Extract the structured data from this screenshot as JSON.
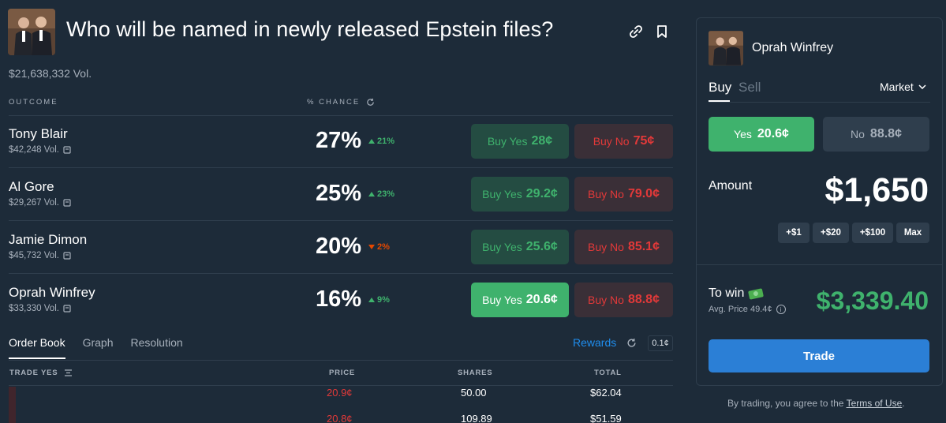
{
  "market": {
    "title": "Who will be named in newly released Epstein files?",
    "volume": "$21,638,332 Vol.",
    "outcome_header": "OUTCOME",
    "chance_header": "% CHANCE"
  },
  "outcomes": [
    {
      "name": "Tony Blair",
      "volume": "$42,248 Vol.",
      "chance": "27%",
      "change": "21%",
      "direction": "up",
      "yes_label": "Buy Yes",
      "yes_price": "28¢",
      "no_label": "Buy No",
      "no_price": "75¢"
    },
    {
      "name": "Al Gore",
      "volume": "$29,267 Vol.",
      "chance": "25%",
      "change": "23%",
      "direction": "up",
      "yes_label": "Buy Yes",
      "yes_price": "29.2¢",
      "no_label": "Buy No",
      "no_price": "79.0¢"
    },
    {
      "name": "Jamie Dimon",
      "volume": "$45,732 Vol.",
      "chance": "20%",
      "change": "2%",
      "direction": "down",
      "yes_label": "Buy Yes",
      "yes_price": "25.6¢",
      "no_label": "Buy No",
      "no_price": "85.1¢"
    },
    {
      "name": "Oprah Winfrey",
      "volume": "$33,330 Vol.",
      "chance": "16%",
      "change": "9%",
      "direction": "up",
      "yes_label": "Buy Yes",
      "yes_price": "20.6¢",
      "no_label": "Buy No",
      "no_price": "88.8¢"
    }
  ],
  "tabs": [
    "Order Book",
    "Graph",
    "Resolution"
  ],
  "rewards_label": "Rewards",
  "tick_size": "0.1¢",
  "order_book": {
    "headers": {
      "trade": "TRADE YES",
      "price": "PRICE",
      "shares": "SHARES",
      "total": "TOTAL"
    },
    "rows": [
      {
        "price": "20.9¢",
        "shares": "50.00",
        "total": "$62.04"
      },
      {
        "price": "20.8¢",
        "shares": "109.89",
        "total": "$51.59"
      }
    ]
  },
  "panel": {
    "selected_name": "Oprah Winfrey",
    "buy_label": "Buy",
    "sell_label": "Sell",
    "order_type": "Market",
    "yes_label": "Yes",
    "yes_price": "20.6¢",
    "no_label": "No",
    "no_price": "88.8¢",
    "amount_label": "Amount",
    "amount": "$1,650",
    "quick_add": [
      "+$1",
      "+$20",
      "+$100",
      "Max"
    ],
    "to_win_label": "To win",
    "avg_price": "Avg. Price 49.4¢",
    "to_win_amount": "$3,339.40",
    "trade_label": "Trade"
  },
  "terms": {
    "prefix": "By trading, you agree to the",
    "link": "Terms of Use",
    "suffix": "."
  },
  "colors": {
    "background": "#1d2b39",
    "green": "#3fb26d",
    "red": "#e23939",
    "blue": "#2b7fd6"
  }
}
